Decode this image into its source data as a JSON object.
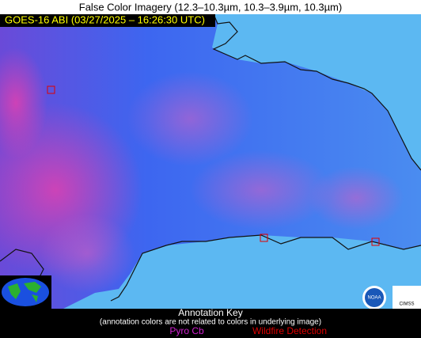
{
  "header": {
    "title": "False Color Imagery (12.3–10.3µm, 10.3–3.9µm, 10.3µm)",
    "badge": "GOES-16 ABI (03/27/2025 – 16:26:30 UTC)"
  },
  "legend": {
    "title": "Annotation Key",
    "note": "(annotation colors are not related to colors in underlying image)",
    "items": [
      "Pyro Cb",
      "Wildfire Detection"
    ]
  },
  "logos": [
    "NOAA",
    "CIMSS"
  ]
}
